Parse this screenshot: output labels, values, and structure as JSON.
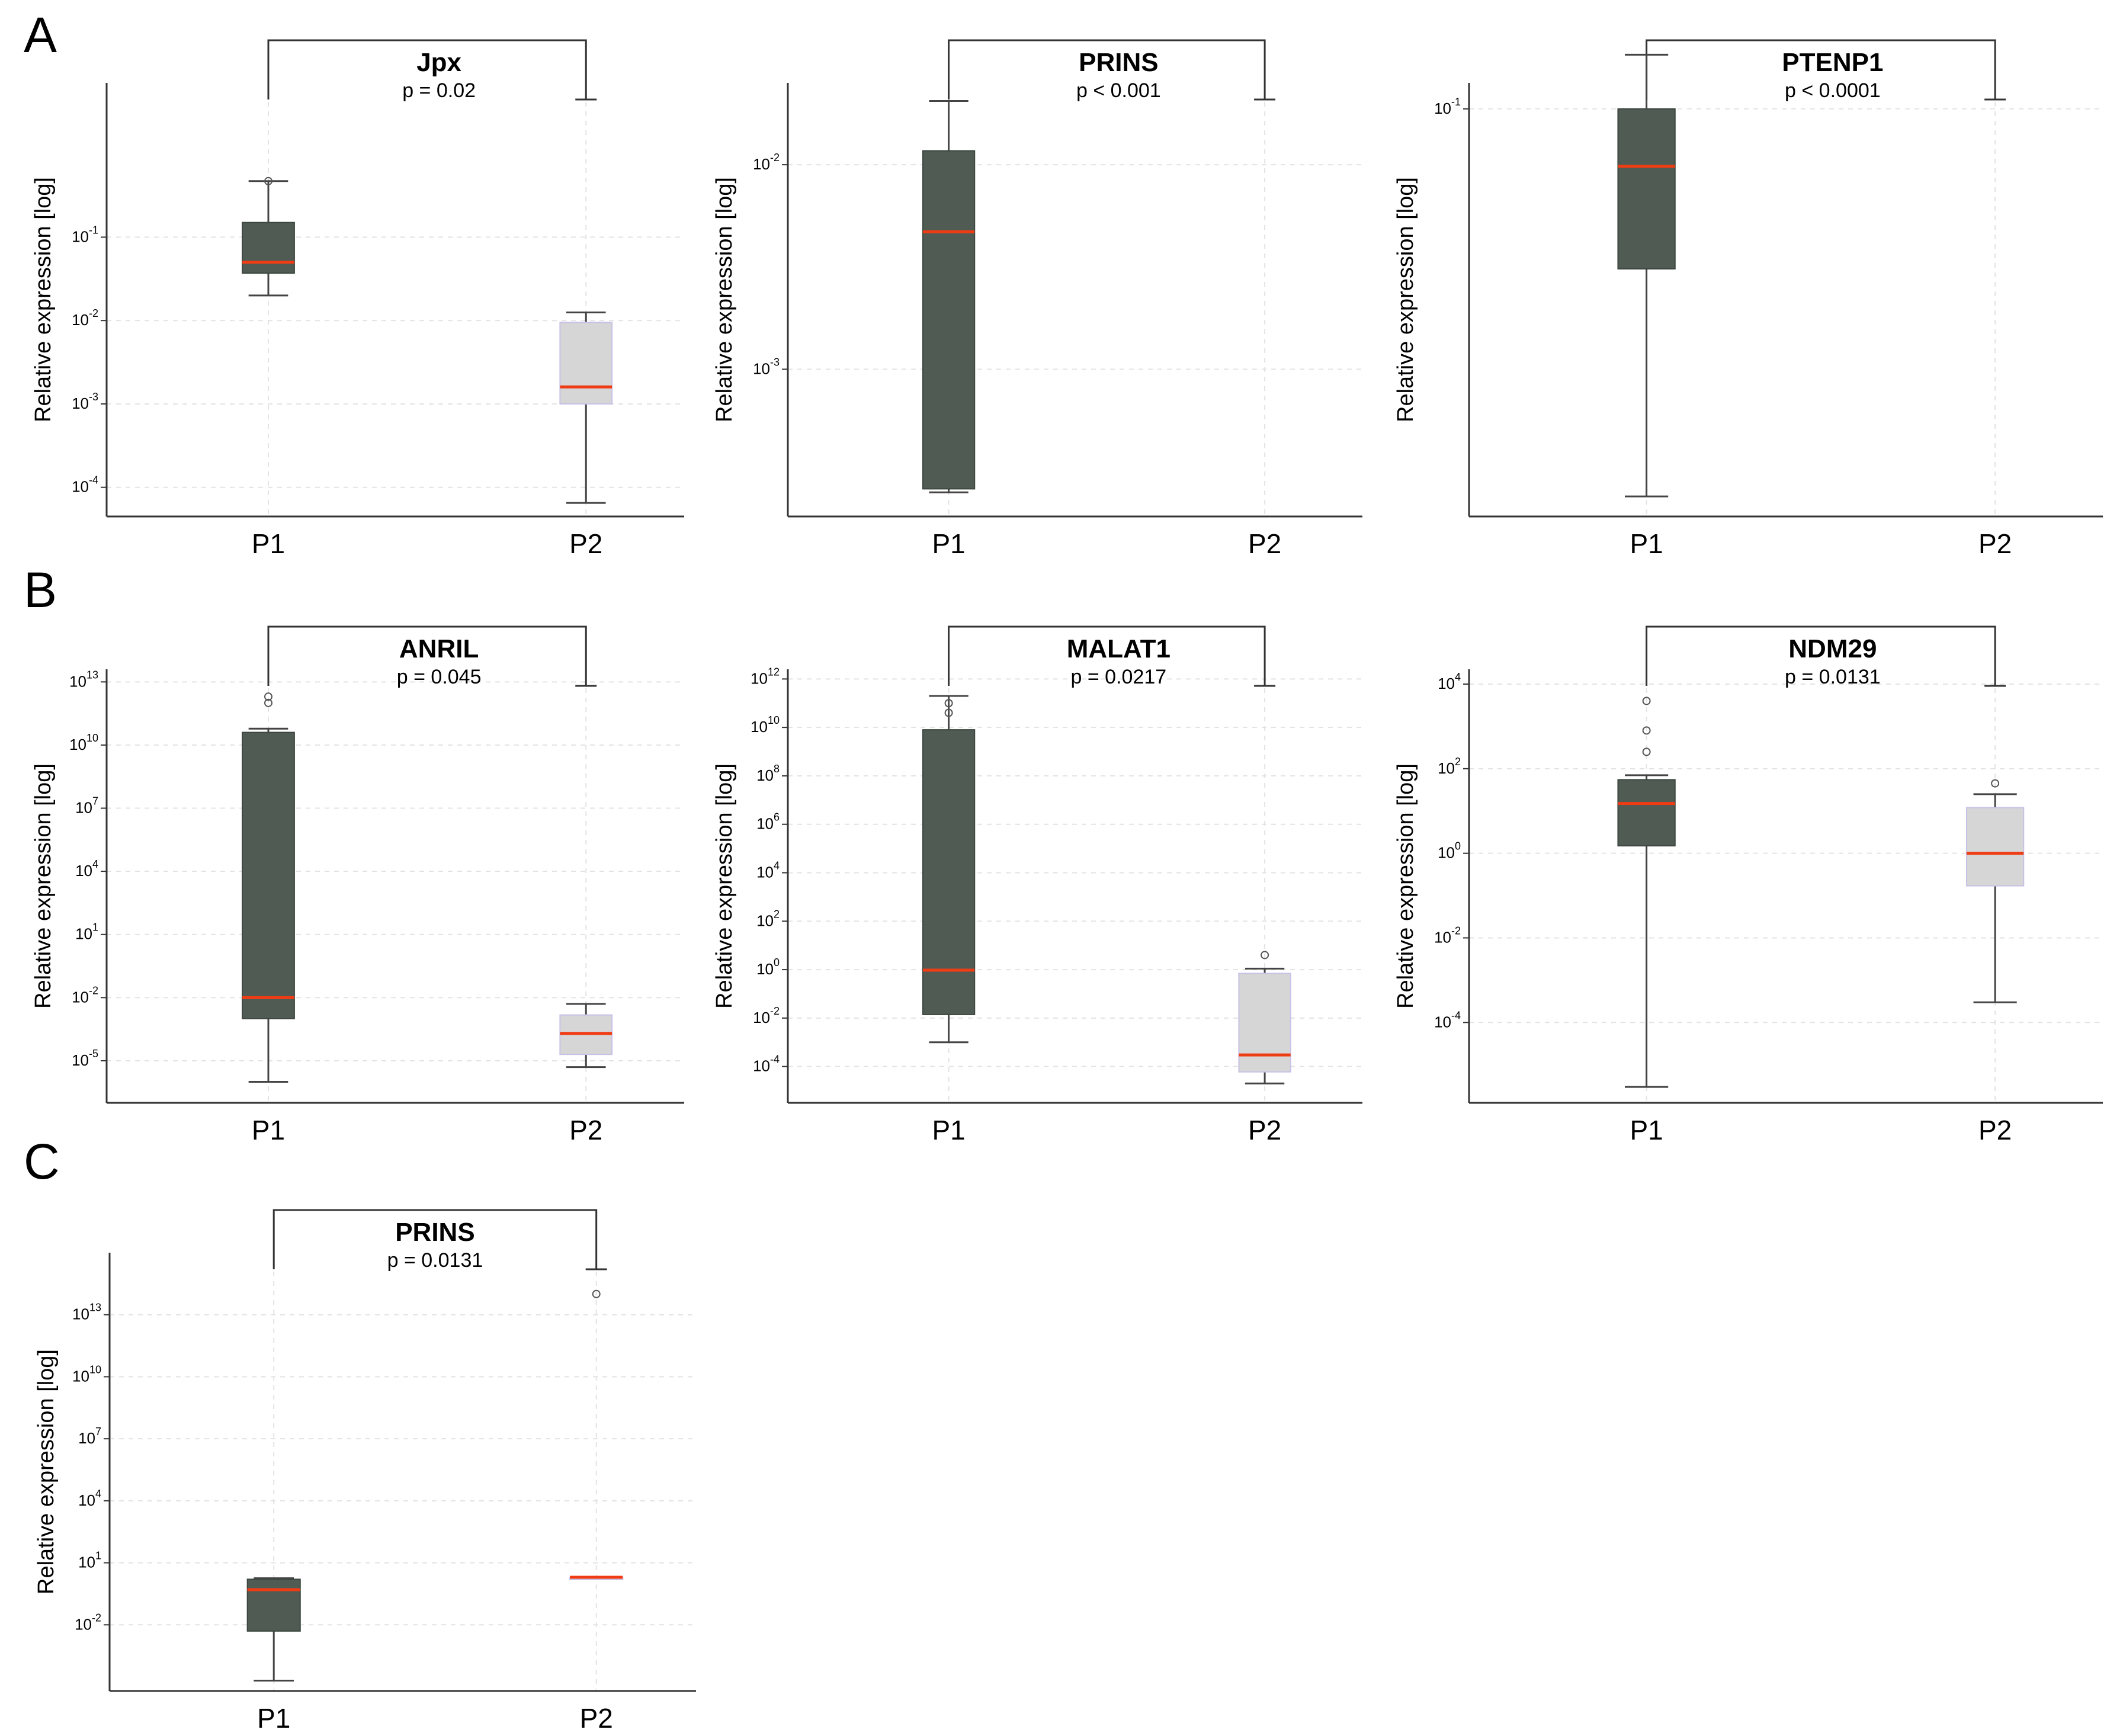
{
  "panels": [
    {
      "letter": "A"
    },
    {
      "letter": "B"
    },
    {
      "letter": "C"
    }
  ],
  "chart_data": [
    {
      "type": "box",
      "panel": "A",
      "title": "Jpx",
      "pvalue": "p = 0.02",
      "ylabel": "Relative expression [log]",
      "yscale": "log",
      "ylim_exp": [
        -4.35,
        0.85
      ],
      "yticks_exp": [
        -4,
        -3,
        -2,
        -1
      ],
      "tick_base": "10",
      "categories": [
        "P1",
        "P2"
      ],
      "boxes": [
        {
          "name": "P1",
          "color": "#4f5b53",
          "whislo": 0.02,
          "q1": 0.037,
          "med": 0.05,
          "q3": 0.15,
          "whishi": 0.47,
          "fliers": [
            0.47
          ]
        },
        {
          "name": "P2",
          "color": "#d6d6d6",
          "whislo": 6.5e-05,
          "q1": 0.001,
          "med": 0.0016,
          "q3": 0.0095,
          "whishi": 0.0125,
          "fliers": []
        }
      ],
      "top_whisker_exp": -0.33,
      "bracket": true
    },
    {
      "type": "box",
      "panel": "A",
      "title": "PRINS",
      "pvalue": "p < 0.001",
      "ylabel": "Relative expression [log]",
      "yscale": "log",
      "ylim_exp": [
        -3.72,
        -1.6
      ],
      "yticks_exp": [
        -3,
        -2
      ],
      "tick_base": "10",
      "categories": [
        "P1",
        "P2"
      ],
      "boxes": [
        {
          "name": "P1",
          "color": "#4f5b53",
          "whislo": 0.00025,
          "q1": 0.00026,
          "med": 0.0047,
          "q3": 0.0117,
          "whishi": 0.0205,
          "fliers": []
        }
      ],
      "top_whisker_exp": -1.69,
      "bracket": true
    },
    {
      "type": "box",
      "panel": "A",
      "title": "PTENP1",
      "pvalue": "p < 0.0001",
      "ylabel": "Relative expression [log]",
      "yscale": "log",
      "ylim_exp": [
        -2.1,
        -0.93
      ],
      "yticks_exp": [
        -1
      ],
      "tick_base": "10",
      "categories": [
        "P1",
        "P2"
      ],
      "boxes": [
        {
          "name": "P1",
          "color": "#4f5b53",
          "whislo": 0.009,
          "q1": 0.037,
          "med": 0.07,
          "q3": 0.1,
          "whishi": 0.14,
          "fliers": []
        }
      ],
      "top_whisker_exp": -0.85,
      "bracket": true
    },
    {
      "type": "box",
      "panel": "B",
      "title": "ANRIL",
      "pvalue": "p = 0.045",
      "ylabel": "Relative expression [log]",
      "yscale": "log",
      "ylim_exp": [
        -7.0,
        13.6
      ],
      "yticks_exp": [
        -5,
        -2,
        1,
        4,
        7,
        10,
        13
      ],
      "tick_base": "10",
      "categories": [
        "P1",
        "P2"
      ],
      "boxes": [
        {
          "name": "P1",
          "color": "#4f5b53",
          "whislo": 1e-06,
          "q1": 0.001,
          "med": 0.01,
          "q3": 40000000000,
          "whishi": 60000000000,
          "fliers": [
            1000000000000,
            2000000000000
          ]
        },
        {
          "name": "P2",
          "color": "#d6d6d6",
          "whislo": 5e-06,
          "q1": 2e-05,
          "med": 0.0002,
          "q3": 0.0015,
          "whishi": 0.005,
          "fliers": []
        }
      ],
      "top_whisker_exp": 12.65,
      "bracket": true
    },
    {
      "type": "box",
      "panel": "B",
      "title": "MALAT1",
      "pvalue": "p = 0.0217",
      "ylabel": "Relative expression [log]",
      "yscale": "log",
      "ylim_exp": [
        -5.5,
        12.4
      ],
      "yticks_exp": [
        -4,
        -2,
        0,
        2,
        4,
        6,
        8,
        10,
        12
      ],
      "tick_base": "10",
      "categories": [
        "P1",
        "P2"
      ],
      "boxes": [
        {
          "name": "P1",
          "color": "#4f5b53",
          "whislo": 0.001,
          "q1": 0.014,
          "med": 0.95,
          "q3": 8000000000,
          "whishi": 200000000000,
          "fliers": [
            100000000000,
            40000000000
          ]
        },
        {
          "name": "P2",
          "color": "#d6d6d6",
          "whislo": 2e-05,
          "q1": 6e-05,
          "med": 0.0003,
          "q3": 0.7,
          "whishi": 1.1,
          "fliers": [
            4
          ]
        }
      ],
      "top_whisker_exp": 11.4,
      "bracket": true
    },
    {
      "type": "box",
      "panel": "B",
      "title": "NDM29",
      "pvalue": "p = 0.0131",
      "ylabel": "Relative expression [log]",
      "yscale": "log",
      "ylim_exp": [
        -5.9,
        4.35
      ],
      "yticks_exp": [
        -4,
        -2,
        0,
        2,
        4
      ],
      "tick_base": "10",
      "categories": [
        "P1",
        "P2"
      ],
      "boxes": [
        {
          "name": "P1",
          "color": "#4f5b53",
          "whislo": 3e-06,
          "q1": 1.5,
          "med": 15,
          "q3": 55,
          "whishi": 70,
          "fliers": [
            4000,
            800,
            250
          ]
        },
        {
          "name": "P2",
          "color": "#d6d6d6",
          "whislo": 0.0003,
          "q1": 0.17,
          "med": 1.0,
          "q3": 12,
          "whishi": 25,
          "fliers": [
            45
          ]
        }
      ],
      "top_whisker_exp": 3.6,
      "bracket": true
    },
    {
      "type": "box",
      "panel": "C",
      "title": "PRINS",
      "pvalue": "p = 0.0131",
      "ylabel": "Relative expression [log]",
      "yscale": "log",
      "ylim_exp": [
        -5.2,
        16.0
      ],
      "yticks_exp": [
        -2,
        1,
        4,
        7,
        10,
        13
      ],
      "tick_base": "10",
      "categories": [
        "P1",
        "P2"
      ],
      "boxes": [
        {
          "name": "P1",
          "color": "#4f5b53",
          "whislo": 2e-05,
          "q1": 0.005,
          "med": 0.5,
          "q3": 1.6,
          "whishi": 1.8,
          "fliers": []
        },
        {
          "name": "P2",
          "color": "#d6d6d6",
          "whislo": 2.0,
          "q1": 2.0,
          "med": 2.0,
          "q3": 2.0,
          "whishi": 2.0,
          "fliers": [
            100000000000000
          ]
        }
      ],
      "top_whisker_exp": 14.0,
      "bracket": true
    }
  ]
}
